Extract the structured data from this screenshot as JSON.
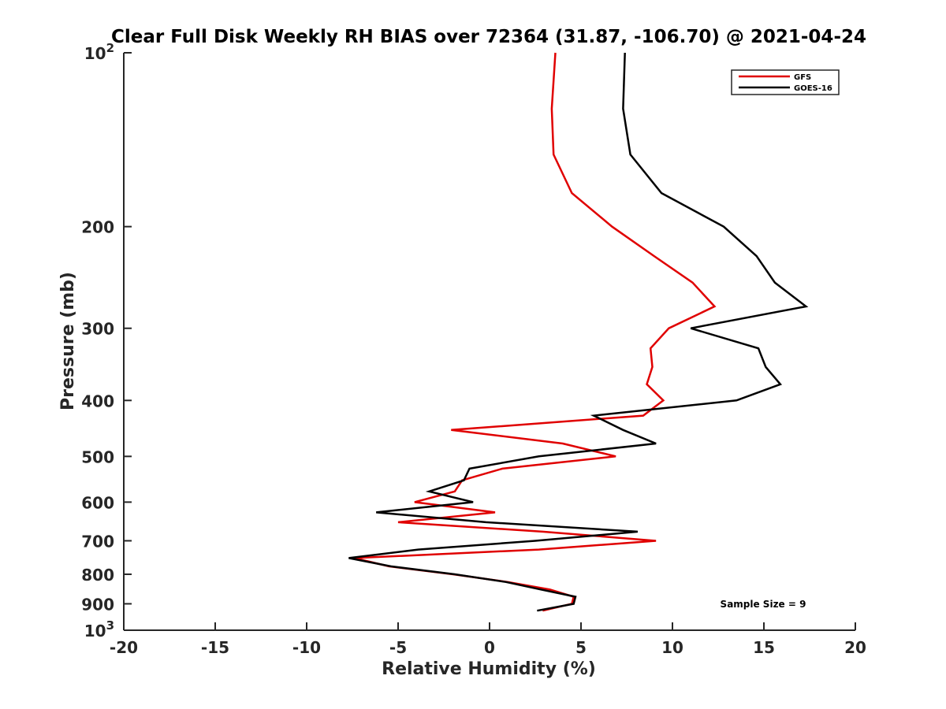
{
  "chart_data": {
    "type": "line",
    "title": "Clear Full Disk Weekly RH BIAS over 72364 (31.87, -106.70) @ 2021-04-24",
    "xlabel": "Relative Humidity (%)",
    "ylabel": "Pressure (mb)",
    "xlim": [
      -20,
      20
    ],
    "ylim": [
      100,
      1000
    ],
    "yscale": "log",
    "y_reversed": true,
    "x_ticks": [
      -20,
      -15,
      -10,
      -5,
      0,
      5,
      10,
      15,
      20
    ],
    "x_tick_labels": [
      "-20",
      "-15",
      "-10",
      "-5",
      "0",
      "5",
      "10",
      "15",
      "20"
    ],
    "y_ticks": [
      100,
      200,
      300,
      400,
      500,
      600,
      700,
      800,
      900,
      1000
    ],
    "y_tick_labels": [
      "10^2",
      "200",
      "300",
      "400",
      "500",
      "600",
      "700",
      "800",
      "900",
      "10^3"
    ],
    "grid": false,
    "legend_position": "top-right",
    "annotation": "Sample Size = 9",
    "series": [
      {
        "name": "GFS",
        "color": "#e00000",
        "points": [
          [
            3.6,
            100
          ],
          [
            3.4,
            125
          ],
          [
            3.5,
            150
          ],
          [
            4.5,
            175
          ],
          [
            6.7,
            200
          ],
          [
            9.0,
            225
          ],
          [
            11.1,
            250
          ],
          [
            12.3,
            275
          ],
          [
            9.8,
            300
          ],
          [
            8.8,
            325
          ],
          [
            8.9,
            350
          ],
          [
            8.6,
            375
          ],
          [
            9.5,
            400
          ],
          [
            8.4,
            425
          ],
          [
            -2.1,
            450
          ],
          [
            4.0,
            475
          ],
          [
            6.9,
            500
          ],
          [
            0.7,
            525
          ],
          [
            -1.5,
            550
          ],
          [
            -1.9,
            575
          ],
          [
            -4.1,
            600
          ],
          [
            0.3,
            625
          ],
          [
            -5.0,
            650
          ],
          [
            2.9,
            675
          ],
          [
            9.1,
            700
          ],
          [
            2.7,
            725
          ],
          [
            -7.4,
            750
          ],
          [
            -5.5,
            775
          ],
          [
            -2.0,
            800
          ],
          [
            1.0,
            825
          ],
          [
            3.3,
            850
          ],
          [
            4.6,
            875
          ],
          [
            4.5,
            900
          ],
          [
            2.9,
            925
          ]
        ]
      },
      {
        "name": "GOES-16",
        "color": "#000000",
        "points": [
          [
            7.4,
            100
          ],
          [
            7.3,
            125
          ],
          [
            7.7,
            150
          ],
          [
            9.4,
            175
          ],
          [
            12.8,
            200
          ],
          [
            14.6,
            225
          ],
          [
            15.6,
            250
          ],
          [
            17.3,
            275
          ],
          [
            11.0,
            300
          ],
          [
            14.7,
            325
          ],
          [
            15.1,
            350
          ],
          [
            15.9,
            375
          ],
          [
            13.5,
            400
          ],
          [
            5.7,
            425
          ],
          [
            7.3,
            450
          ],
          [
            9.1,
            475
          ],
          [
            2.7,
            500
          ],
          [
            -1.1,
            525
          ],
          [
            -1.4,
            550
          ],
          [
            -3.3,
            575
          ],
          [
            -0.9,
            600
          ],
          [
            -6.2,
            625
          ],
          [
            -0.2,
            650
          ],
          [
            8.1,
            675
          ],
          [
            2.5,
            700
          ],
          [
            -3.9,
            725
          ],
          [
            -7.7,
            750
          ],
          [
            -5.4,
            775
          ],
          [
            -1.9,
            800
          ],
          [
            0.9,
            825
          ],
          [
            2.8,
            850
          ],
          [
            4.7,
            875
          ],
          [
            4.6,
            900
          ],
          [
            2.6,
            925
          ]
        ]
      }
    ]
  }
}
